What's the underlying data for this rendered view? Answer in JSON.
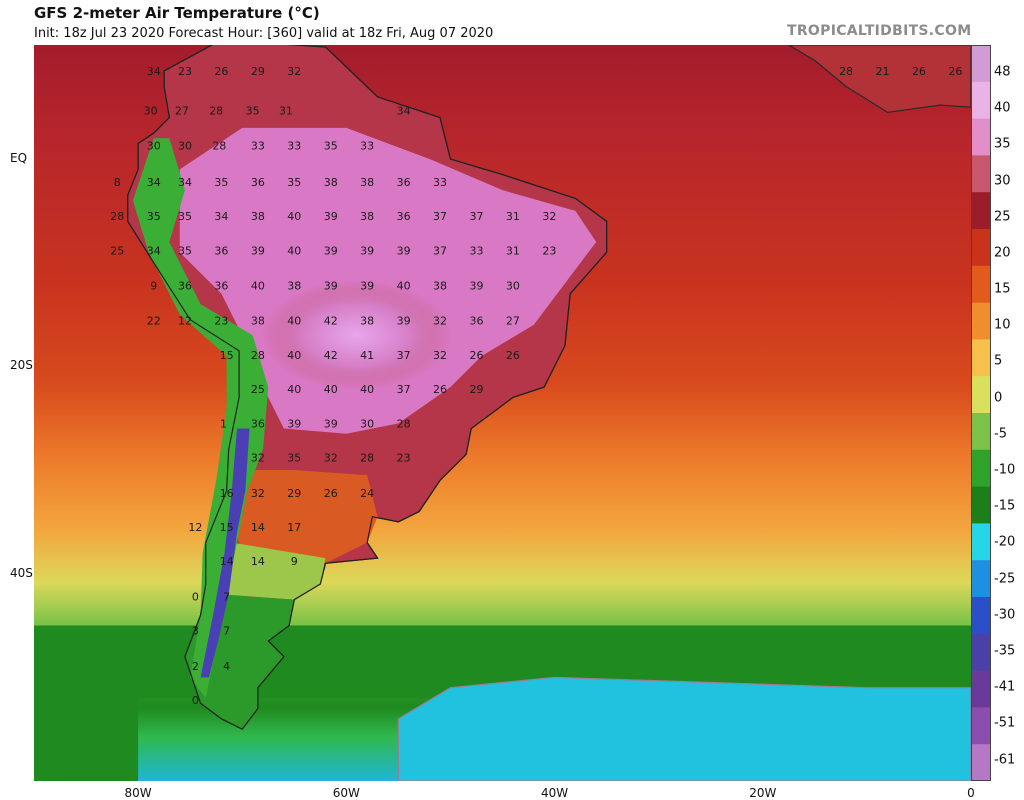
{
  "header": {
    "title": "GFS 2-meter Air Temperature (°C)",
    "subtitle": "Init: 18z Jul 23 2020   Forecast Hour: [360]   valid at 18z Fri, Aug 07 2020",
    "site": "TROPICALTIDBITS.COM"
  },
  "axes": {
    "lat_labels": [
      {
        "text": "EQ",
        "lat": 0
      },
      {
        "text": "20S",
        "lat": -20
      },
      {
        "text": "40S",
        "lat": -40
      }
    ],
    "lon_labels": [
      {
        "text": "80W",
        "lon": -80
      },
      {
        "text": "60W",
        "lon": -60
      },
      {
        "text": "40W",
        "lon": -40
      },
      {
        "text": "20W",
        "lon": -20
      },
      {
        "text": "0",
        "lon": 0
      }
    ]
  },
  "colorbar": {
    "labels": [
      "48",
      "40",
      "35",
      "30",
      "25",
      "20",
      "15",
      "10",
      "5",
      "0",
      "-5",
      "-10",
      "-15",
      "-20",
      "-25",
      "-30",
      "-35",
      "-41",
      "-51",
      "-61"
    ],
    "colors": [
      "#d19bd6",
      "#e9b3e6",
      "#e28ec8",
      "#c8576e",
      "#9b1d2a",
      "#c9331c",
      "#e25b1c",
      "#f08d2c",
      "#f6c04a",
      "#d9e05c",
      "#7cc148",
      "#2ea32a",
      "#1d7f1b",
      "#26d6e6",
      "#1f8fe2",
      "#2b4fc8",
      "#4b3fa8",
      "#6a3a9a",
      "#8a4fae",
      "#b478c4"
    ]
  },
  "legend_unit": "°C",
  "temperature_points": [
    {
      "t": "34",
      "lat": 8.5,
      "lon": -78.5
    },
    {
      "t": "23",
      "lat": 8.5,
      "lon": -75.5
    },
    {
      "t": "26",
      "lat": 8.5,
      "lon": -72
    },
    {
      "t": "29",
      "lat": 8.5,
      "lon": -68.5
    },
    {
      "t": "32",
      "lat": 8.5,
      "lon": -65
    },
    {
      "t": "30",
      "lat": 4.7,
      "lon": -78.8
    },
    {
      "t": "27",
      "lat": 4.7,
      "lon": -75.8
    },
    {
      "t": "28",
      "lat": 4.7,
      "lon": -72.5
    },
    {
      "t": "35",
      "lat": 4.7,
      "lon": -69
    },
    {
      "t": "31",
      "lat": 4.7,
      "lon": -65.8
    },
    {
      "t": "34",
      "lat": 4.7,
      "lon": -54.5
    },
    {
      "t": "30",
      "lat": 1.3,
      "lon": -78.5
    },
    {
      "t": "30",
      "lat": 1.3,
      "lon": -75.5
    },
    {
      "t": "28",
      "lat": 1.3,
      "lon": -72.2
    },
    {
      "t": "33",
      "lat": 1.3,
      "lon": -68.5
    },
    {
      "t": "33",
      "lat": 1.3,
      "lon": -65
    },
    {
      "t": "35",
      "lat": 1.3,
      "lon": -61.5
    },
    {
      "t": "33",
      "lat": 1.3,
      "lon": -58
    },
    {
      "t": "8",
      "lat": -2.2,
      "lon": -82
    },
    {
      "t": "34",
      "lat": -2.2,
      "lon": -78.5
    },
    {
      "t": "34",
      "lat": -2.2,
      "lon": -75.5
    },
    {
      "t": "35",
      "lat": -2.2,
      "lon": -72
    },
    {
      "t": "36",
      "lat": -2.2,
      "lon": -68.5
    },
    {
      "t": "35",
      "lat": -2.2,
      "lon": -65
    },
    {
      "t": "38",
      "lat": -2.2,
      "lon": -61.5
    },
    {
      "t": "38",
      "lat": -2.2,
      "lon": -58
    },
    {
      "t": "36",
      "lat": -2.2,
      "lon": -54.5
    },
    {
      "t": "33",
      "lat": -2.2,
      "lon": -51
    },
    {
      "t": "28",
      "lat": -5.5,
      "lon": -82
    },
    {
      "t": "35",
      "lat": -5.5,
      "lon": -78.5
    },
    {
      "t": "35",
      "lat": -5.5,
      "lon": -75.5
    },
    {
      "t": "34",
      "lat": -5.5,
      "lon": -72
    },
    {
      "t": "38",
      "lat": -5.5,
      "lon": -68.5
    },
    {
      "t": "40",
      "lat": -5.5,
      "lon": -65
    },
    {
      "t": "39",
      "lat": -5.5,
      "lon": -61.5
    },
    {
      "t": "38",
      "lat": -5.5,
      "lon": -58
    },
    {
      "t": "36",
      "lat": -5.5,
      "lon": -54.5
    },
    {
      "t": "37",
      "lat": -5.5,
      "lon": -51
    },
    {
      "t": "37",
      "lat": -5.5,
      "lon": -47.5
    },
    {
      "t": "31",
      "lat": -5.5,
      "lon": -44
    },
    {
      "t": "32",
      "lat": -5.5,
      "lon": -40.5
    },
    {
      "t": "25",
      "lat": -8.8,
      "lon": -82
    },
    {
      "t": "34",
      "lat": -8.8,
      "lon": -78.5
    },
    {
      "t": "35",
      "lat": -8.8,
      "lon": -75.5
    },
    {
      "t": "36",
      "lat": -8.8,
      "lon": -72
    },
    {
      "t": "39",
      "lat": -8.8,
      "lon": -68.5
    },
    {
      "t": "40",
      "lat": -8.8,
      "lon": -65
    },
    {
      "t": "39",
      "lat": -8.8,
      "lon": -61.5
    },
    {
      "t": "39",
      "lat": -8.8,
      "lon": -58
    },
    {
      "t": "39",
      "lat": -8.8,
      "lon": -54.5
    },
    {
      "t": "37",
      "lat": -8.8,
      "lon": -51
    },
    {
      "t": "33",
      "lat": -8.8,
      "lon": -47.5
    },
    {
      "t": "31",
      "lat": -8.8,
      "lon": -44
    },
    {
      "t": "23",
      "lat": -8.8,
      "lon": -40.5
    },
    {
      "t": "9",
      "lat": -12.2,
      "lon": -78.5
    },
    {
      "t": "36",
      "lat": -12.2,
      "lon": -75.5
    },
    {
      "t": "36",
      "lat": -12.2,
      "lon": -72
    },
    {
      "t": "40",
      "lat": -12.2,
      "lon": -68.5
    },
    {
      "t": "38",
      "lat": -12.2,
      "lon": -65
    },
    {
      "t": "39",
      "lat": -12.2,
      "lon": -61.5
    },
    {
      "t": "39",
      "lat": -12.2,
      "lon": -58
    },
    {
      "t": "40",
      "lat": -12.2,
      "lon": -54.5
    },
    {
      "t": "38",
      "lat": -12.2,
      "lon": -51
    },
    {
      "t": "39",
      "lat": -12.2,
      "lon": -47.5
    },
    {
      "t": "30",
      "lat": -12.2,
      "lon": -44
    },
    {
      "t": "22",
      "lat": -15.6,
      "lon": -78.5
    },
    {
      "t": "12",
      "lat": -15.6,
      "lon": -75.5
    },
    {
      "t": "23",
      "lat": -15.6,
      "lon": -72
    },
    {
      "t": "38",
      "lat": -15.6,
      "lon": -68.5
    },
    {
      "t": "40",
      "lat": -15.6,
      "lon": -65
    },
    {
      "t": "42",
      "lat": -15.6,
      "lon": -61.5
    },
    {
      "t": "38",
      "lat": -15.6,
      "lon": -58
    },
    {
      "t": "39",
      "lat": -15.6,
      "lon": -54.5
    },
    {
      "t": "32",
      "lat": -15.6,
      "lon": -51
    },
    {
      "t": "36",
      "lat": -15.6,
      "lon": -47.5
    },
    {
      "t": "27",
      "lat": -15.6,
      "lon": -44
    },
    {
      "t": "15",
      "lat": -18.9,
      "lon": -71.5
    },
    {
      "t": "28",
      "lat": -18.9,
      "lon": -68.5
    },
    {
      "t": "40",
      "lat": -18.9,
      "lon": -65
    },
    {
      "t": "42",
      "lat": -18.9,
      "lon": -61.5
    },
    {
      "t": "41",
      "lat": -18.9,
      "lon": -58
    },
    {
      "t": "37",
      "lat": -18.9,
      "lon": -54.5
    },
    {
      "t": "32",
      "lat": -18.9,
      "lon": -51
    },
    {
      "t": "26",
      "lat": -18.9,
      "lon": -47.5
    },
    {
      "t": "26",
      "lat": -18.9,
      "lon": -44
    },
    {
      "t": "25",
      "lat": -22.2,
      "lon": -68.5
    },
    {
      "t": "40",
      "lat": -22.2,
      "lon": -65
    },
    {
      "t": "40",
      "lat": -22.2,
      "lon": -61.5
    },
    {
      "t": "40",
      "lat": -22.2,
      "lon": -58
    },
    {
      "t": "37",
      "lat": -22.2,
      "lon": -54.5
    },
    {
      "t": "26",
      "lat": -22.2,
      "lon": -51
    },
    {
      "t": "29",
      "lat": -22.2,
      "lon": -47.5
    },
    {
      "t": "1",
      "lat": -25.5,
      "lon": -71.8
    },
    {
      "t": "36",
      "lat": -25.5,
      "lon": -68.5
    },
    {
      "t": "39",
      "lat": -25.5,
      "lon": -65
    },
    {
      "t": "39",
      "lat": -25.5,
      "lon": -61.5
    },
    {
      "t": "30",
      "lat": -25.5,
      "lon": -58
    },
    {
      "t": "28",
      "lat": -25.5,
      "lon": -54.5
    },
    {
      "t": "32",
      "lat": -28.8,
      "lon": -68.5
    },
    {
      "t": "35",
      "lat": -28.8,
      "lon": -65
    },
    {
      "t": "32",
      "lat": -28.8,
      "lon": -61.5
    },
    {
      "t": "28",
      "lat": -28.8,
      "lon": -58
    },
    {
      "t": "23",
      "lat": -28.8,
      "lon": -54.5
    },
    {
      "t": "16",
      "lat": -32.2,
      "lon": -71.5
    },
    {
      "t": "32",
      "lat": -32.2,
      "lon": -68.5
    },
    {
      "t": "29",
      "lat": -32.2,
      "lon": -65
    },
    {
      "t": "26",
      "lat": -32.2,
      "lon": -61.5
    },
    {
      "t": "24",
      "lat": -32.2,
      "lon": -58
    },
    {
      "t": "12",
      "lat": -35.5,
      "lon": -74.5
    },
    {
      "t": "15",
      "lat": -35.5,
      "lon": -71.5
    },
    {
      "t": "14",
      "lat": -35.5,
      "lon": -68.5
    },
    {
      "t": "17",
      "lat": -35.5,
      "lon": -65
    },
    {
      "t": "14",
      "lat": -38.8,
      "lon": -71.5
    },
    {
      "t": "14",
      "lat": -38.8,
      "lon": -68.5
    },
    {
      "t": "9",
      "lat": -38.8,
      "lon": -65
    },
    {
      "t": "0",
      "lat": -42.2,
      "lon": -74.5
    },
    {
      "t": "7",
      "lat": -42.2,
      "lon": -71.5
    },
    {
      "t": "3",
      "lat": -45.5,
      "lon": -74.5
    },
    {
      "t": "7",
      "lat": -45.5,
      "lon": -71.5
    },
    {
      "t": "2",
      "lat": -48.9,
      "lon": -74.5
    },
    {
      "t": "4",
      "lat": -48.9,
      "lon": -71.5
    },
    {
      "t": "0",
      "lat": -52.2,
      "lon": -74.5
    },
    {
      "t": "28",
      "lat": 8.5,
      "lon": -12
    },
    {
      "t": "21",
      "lat": 8.5,
      "lon": -8.5
    },
    {
      "t": "26",
      "lat": 8.5,
      "lon": -5
    },
    {
      "t": "26",
      "lat": 8.5,
      "lon": -1.5
    }
  ]
}
